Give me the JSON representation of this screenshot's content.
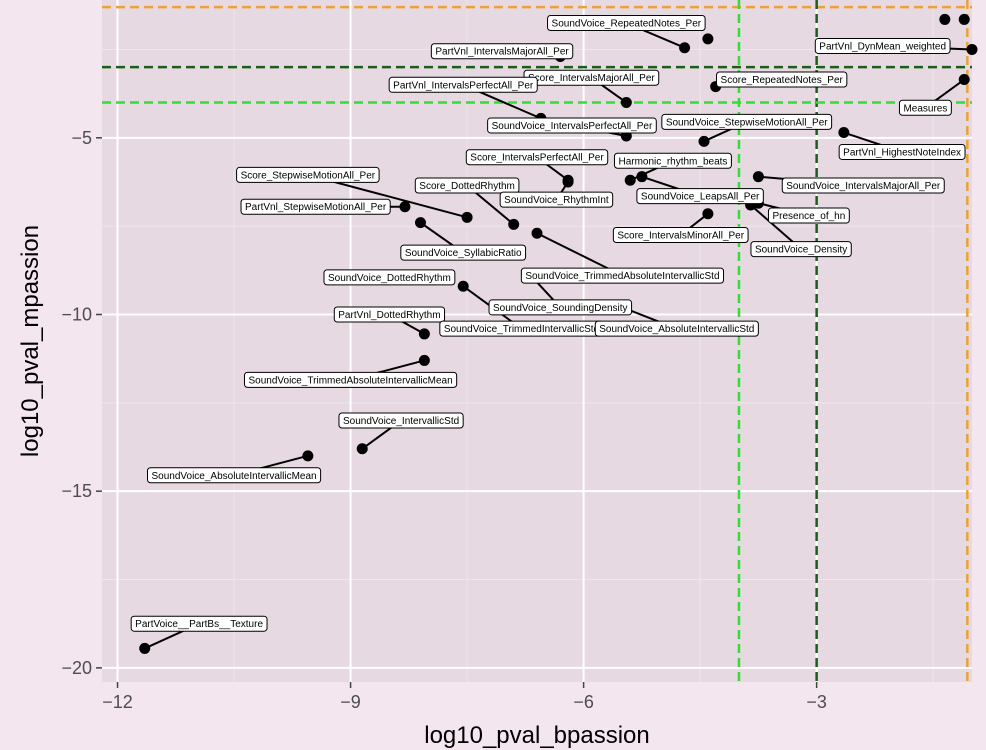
{
  "chart_data": {
    "type": "scatter",
    "title": "",
    "xlabel": "log10_pval_bpassion",
    "ylabel": "log10_pval_mpassion",
    "xlim": [
      -12.2,
      -1
    ],
    "ylim": [
      -20.4,
      -1.1
    ],
    "xticks": [
      -12,
      -9,
      -6,
      -3
    ],
    "yticks": [
      -5,
      -10,
      -15,
      -20
    ],
    "tick_labels": {
      "x": [
        "−12",
        "−9",
        "−6",
        "−3"
      ],
      "y": [
        "−5",
        "−10",
        "−15",
        "−20"
      ]
    },
    "grid": true,
    "reference_lines": [
      {
        "orient": "v",
        "value": -1.06,
        "color": "#e9a23b"
      },
      {
        "orient": "h",
        "value": -1.3,
        "color": "#e9a23b"
      },
      {
        "orient": "v",
        "value": -3.0,
        "color": "#1a5e1a"
      },
      {
        "orient": "h",
        "value": -3.0,
        "color": "#1a5e1a"
      },
      {
        "orient": "v",
        "value": -4.0,
        "color": "#33dd33"
      },
      {
        "orient": "h",
        "value": -4.0,
        "color": "#33dd33"
      }
    ],
    "points": [
      {
        "name": "PartVoice__PartBs__Texture",
        "x": -11.65,
        "y": -19.45,
        "lx": -10.95,
        "ly": -18.75
      },
      {
        "name": "SoundVoice_AbsoluteIntervallicMean",
        "x": -9.55,
        "y": -14.0,
        "lx": -10.5,
        "ly": -14.55
      },
      {
        "name": "SoundVoice_IntervallicStd",
        "x": -8.85,
        "y": -13.8,
        "lx": -8.35,
        "ly": -13.0
      },
      {
        "name": "SoundVoice_TrimmedAbsoluteIntervallicMean",
        "x": -8.05,
        "y": -11.3,
        "lx": -9.0,
        "ly": -11.85
      },
      {
        "name": "PartVnl_DottedRhythm",
        "x": -8.05,
        "y": -10.55,
        "lx": -8.5,
        "ly": -10.0
      },
      {
        "name": "SoundVoice_TrimmedIntervallicStd",
        "x": -7.55,
        "y": -9.2,
        "lx": -6.8,
        "ly": -10.4
      },
      {
        "name": "SoundVoice_DottedRhythm",
        "x": -7.85,
        "y": -9.0,
        "lx": -8.5,
        "ly": -8.95
      },
      {
        "name": "SoundVoice_SoundingDensity",
        "x": -6.7,
        "y": -8.85,
        "lx": -6.3,
        "ly": -9.8
      },
      {
        "name": "SoundVoice_AbsoluteIntervallicStd",
        "x": -5.5,
        "y": -9.8,
        "lx": -4.8,
        "ly": -10.4
      },
      {
        "name": "SoundVoice_SyllabicRatio",
        "x": -8.1,
        "y": -7.4,
        "lx": -7.55,
        "ly": -8.25
      },
      {
        "name": "SoundVoice_TrimmedAbsoluteIntervallicStd",
        "x": -6.6,
        "y": -7.7,
        "lx": -5.5,
        "ly": -8.9
      },
      {
        "name": "PartVnl_StepwiseMotionAll_Per",
        "x": -8.3,
        "y": -6.95,
        "lx": -9.45,
        "ly": -6.95
      },
      {
        "name": "Score_StepwiseMotionAll_Per",
        "x": -7.5,
        "y": -7.25,
        "lx": -9.55,
        "ly": -6.05
      },
      {
        "name": "Score_DottedRhythm",
        "x": -6.9,
        "y": -7.45,
        "lx": -7.5,
        "ly": -6.35
      },
      {
        "name": "SoundVoice_RhythmInt",
        "x": -6.2,
        "y": -6.25,
        "lx": -6.35,
        "ly": -6.75
      },
      {
        "name": "Score_IntervalsPerfectAll_Per",
        "x": -6.2,
        "y": -6.2,
        "lx": -6.6,
        "ly": -5.55
      },
      {
        "name": "Harmonic_rhythm_beats",
        "x": -5.4,
        "y": -6.2,
        "lx": -4.85,
        "ly": -5.65
      },
      {
        "name": "SoundVoice_LeapsAll_Per",
        "x": -5.25,
        "y": -6.1,
        "lx": -4.5,
        "ly": -6.65
      },
      {
        "name": "Score_IntervalsMinorAll_Per",
        "x": -4.4,
        "y": -7.15,
        "lx": -4.75,
        "ly": -7.75
      },
      {
        "name": "SoundVoice_StepwiseMotionAll_Per",
        "x": -4.45,
        "y": -5.1,
        "lx": -3.9,
        "ly": -4.55
      },
      {
        "name": "Score_IntervalsMajorAll_Per",
        "x": -5.45,
        "y": -4.0,
        "lx": -5.9,
        "ly": -3.3
      },
      {
        "name": "SoundVoice_IntervalsPerfectAll_Per",
        "x": -5.45,
        "y": -4.95,
        "lx": -6.15,
        "ly": -4.65
      },
      {
        "name": "PartVnl_IntervalsPerfectAll_Per",
        "x": -6.55,
        "y": -4.45,
        "lx": -7.55,
        "ly": -3.5
      },
      {
        "name": "PartVnl_IntervalsMajorAll_Per",
        "x": -6.3,
        "y": -2.7,
        "lx": -7.05,
        "ly": -2.55
      },
      {
        "name": "SoundVoice_RepeatedNotes_Per",
        "x": -4.7,
        "y": -2.45,
        "lx": -5.45,
        "ly": -1.75
      },
      {
        "name": "Score_RepeatedNotes_Per",
        "x": -4.3,
        "y": -3.55,
        "lx": -3.45,
        "ly": -3.35
      },
      {
        "name": "PartVnl_DynMean_weighted",
        "x": -1.0,
        "y": -2.5,
        "lx": -2.15,
        "ly": -2.4
      },
      {
        "name": "Measures",
        "x": -1.1,
        "y": -3.35,
        "lx": -1.6,
        "ly": -4.15
      },
      {
        "name": "PartVnl_HighestNoteIndex",
        "x": -2.65,
        "y": -4.85,
        "lx": -1.9,
        "ly": -5.4
      },
      {
        "name": "SoundVoice_IntervalsMajorAll_Per",
        "x": -3.75,
        "y": -6.1,
        "lx": -2.4,
        "ly": -6.35
      },
      {
        "name": "Presence_of_hn",
        "x": -3.75,
        "y": -6.85,
        "lx": -3.1,
        "ly": -7.2
      },
      {
        "name": "SoundVoice_Density",
        "x": -3.85,
        "y": -6.9,
        "lx": -3.2,
        "ly": -8.15
      },
      {
        "name": "",
        "x": -4.4,
        "y": -2.2,
        "lx": null,
        "ly": null
      },
      {
        "name": "",
        "x": -1.35,
        "y": -1.65,
        "lx": null,
        "ly": null
      },
      {
        "name": "",
        "x": -1.1,
        "y": -1.65,
        "lx": null,
        "ly": null
      }
    ]
  }
}
